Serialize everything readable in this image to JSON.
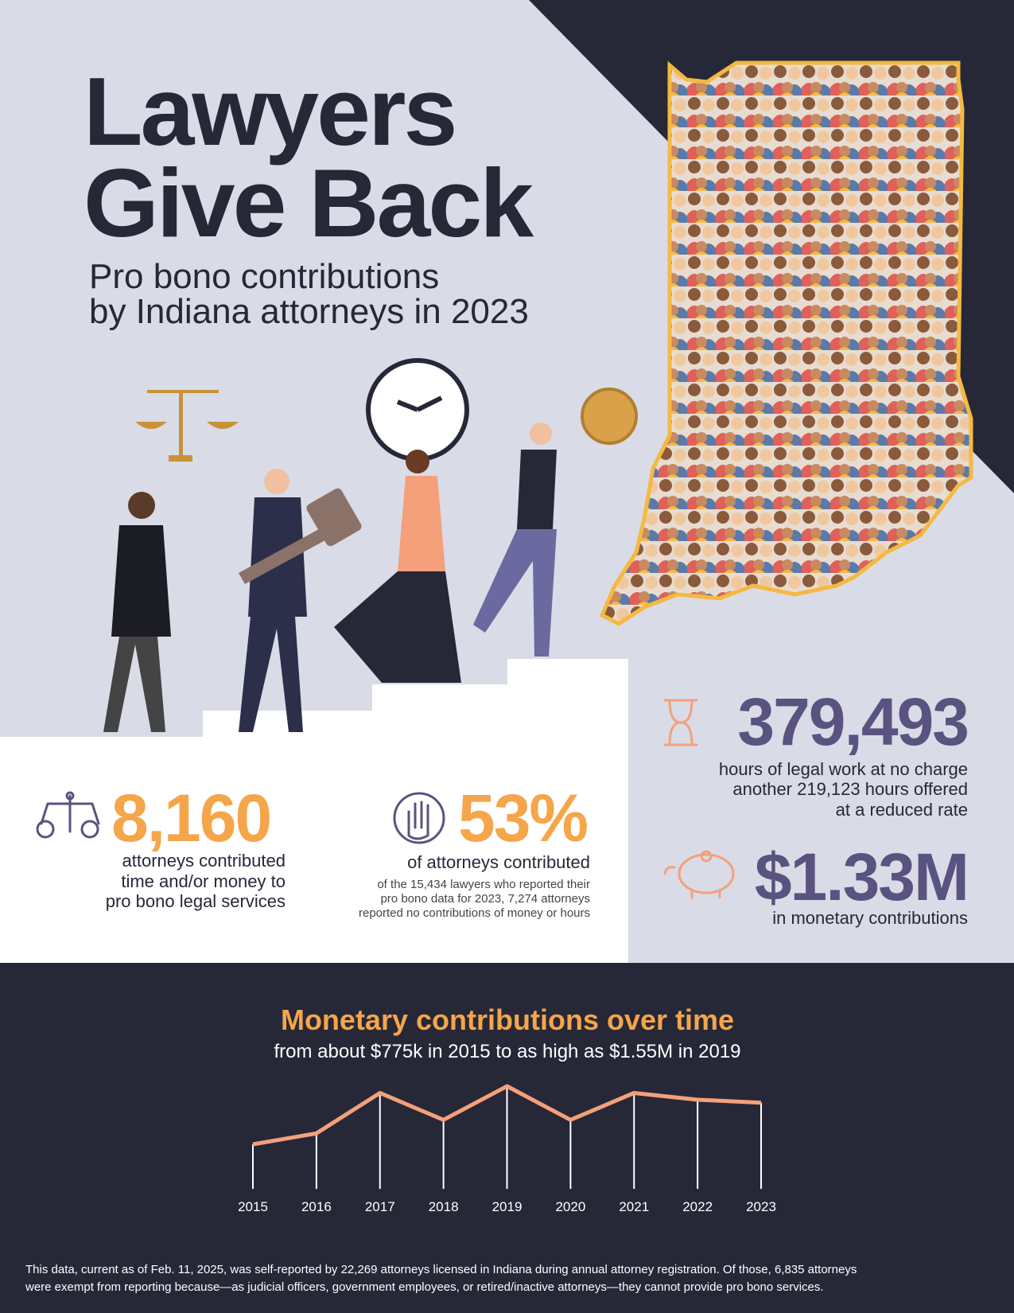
{
  "header": {
    "title": [
      "Lawyers",
      "Give Back"
    ],
    "subtitle": [
      "Pro bono contributions",
      "by Indiana attorneys in 2023"
    ]
  },
  "stats": {
    "hours": {
      "value": "379,493",
      "text": [
        "hours of legal work at no charge",
        "another 219,123 hours offered",
        "at a reduced rate"
      ]
    },
    "money": {
      "value": "$1.33M",
      "text": [
        "in monetary contributions"
      ]
    },
    "attorneys": {
      "value": "8,160",
      "text": [
        "attorneys contributed",
        "time and/or money to",
        "pro bono legal services"
      ]
    },
    "percent": {
      "value": "53%",
      "text": [
        "of attorneys contributed"
      ],
      "note": [
        "of the 15,434 lawyers who reported their",
        "pro bono data for 2023, 7,274 attorneys",
        "reported no contributions of money or hours"
      ]
    }
  },
  "chart_data": {
    "type": "line",
    "title": "Monetary contributions over time",
    "subtitle": "from about $775k in 2015 to as high as $1.55M in 2019",
    "categories": [
      "2015",
      "2016",
      "2017",
      "2018",
      "2019",
      "2020",
      "2021",
      "2022",
      "2023"
    ],
    "values": [
      775000,
      921000,
      1460000,
      1101000,
      1550000,
      1101000,
      1460000,
      1370000,
      1330000
    ],
    "color": "#f4a07a"
  },
  "footnote": [
    "This data, current as of Feb. 11, 2025, was self-reported by 22,269 attorneys licensed in Indiana during annual attorney registration. Of those, 6,835 attorneys",
    "were exempt from reporting because—as judicial officers, government employees, or retired/inactive attorneys—they cannot provide pro bono services."
  ]
}
